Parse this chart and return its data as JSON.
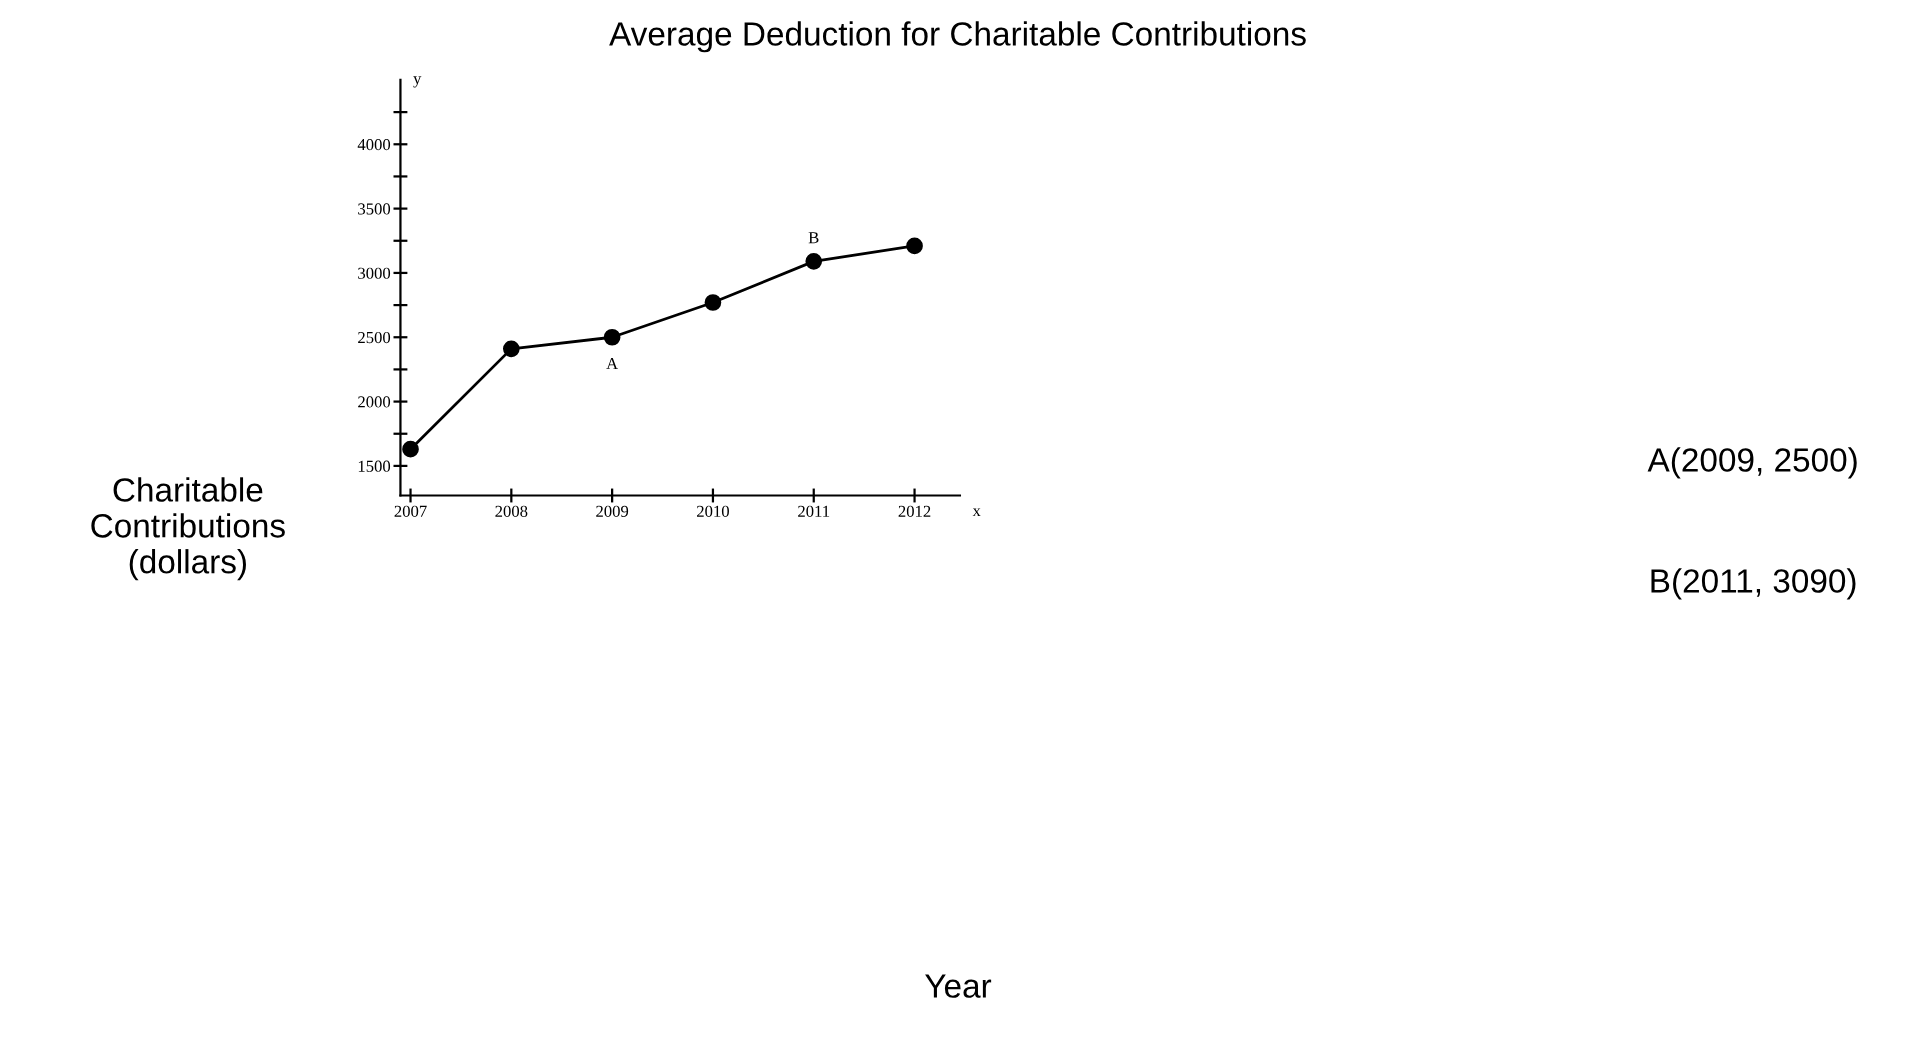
{
  "chart_data": {
    "type": "line",
    "title": "Average Deduction for Charitable Contributions",
    "ylabel": "Charitable\nContributions\n(dollars)",
    "x": [
      2007,
      2008,
      2009,
      2010,
      2011,
      2012
    ],
    "series": [
      {
        "color": "#000000",
        "values": [
          1630,
          2410,
          2500,
          2770,
          3090,
          3210
        ]
      }
    ],
    "marker": "circle",
    "line_style": "solid",
    "grid": false,
    "legend": false,
    "xlim": [
      2006.9,
      2012.45
    ],
    "ylim": [
      1270,
      4500
    ],
    "xticks": [
      2007,
      2008,
      2009,
      2010,
      2011,
      2012
    ],
    "yticks": [
      1500,
      {
        "value": 1750,
        "label": null
      },
      2000,
      {
        "value": 2250,
        "label": null
      },
      2500,
      {
        "value": 2750,
        "label": null
      },
      3000,
      {
        "value": 3250,
        "label": null
      },
      3500,
      {
        "value": 3750,
        "label": null
      },
      4000,
      {
        "value": 4250,
        "label": null
      }
    ],
    "annotations": [
      {
        "text": "A",
        "x": 2009,
        "y": 2500
      },
      {
        "text": "B",
        "x": 2011,
        "y": 3090
      },
      "A(2009, 2500)",
      "B(2011, 3090)",
      "x",
      "y",
      "Year"
    ]
  }
}
